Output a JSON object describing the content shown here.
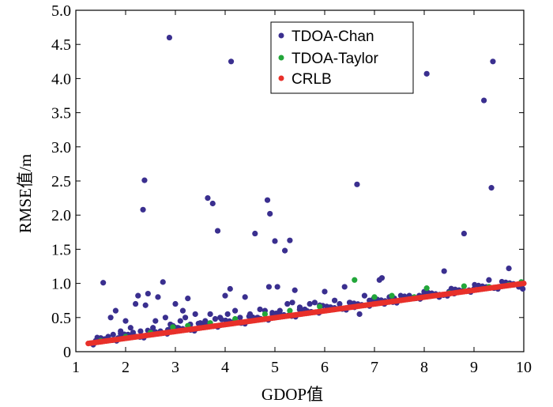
{
  "chart_data": {
    "type": "scatter",
    "title": "",
    "xlabel": "GDOP值",
    "ylabel": "RMSE值/m",
    "xlim": [
      1,
      10
    ],
    "ylim": [
      0,
      5
    ],
    "xticks": [
      "1",
      "2",
      "3",
      "4",
      "5",
      "6",
      "7",
      "8",
      "9",
      "10"
    ],
    "yticks": [
      "0",
      "0.5",
      "1.0",
      "1.5",
      "2.0",
      "2.5",
      "3.0",
      "3.5",
      "4.0",
      "4.5",
      "5.0"
    ],
    "legend": {
      "position": "top-right"
    },
    "series": [
      {
        "name": "TDOA-Chan",
        "color": "#3a2f8f",
        "points": [
          [
            1.4,
            0.16
          ],
          [
            1.5,
            0.2
          ],
          [
            1.55,
            1.01
          ],
          [
            1.6,
            0.18
          ],
          [
            1.65,
            0.22
          ],
          [
            1.7,
            0.5
          ],
          [
            1.75,
            0.25
          ],
          [
            1.8,
            0.6
          ],
          [
            1.85,
            0.2
          ],
          [
            1.9,
            0.3
          ],
          [
            1.95,
            0.22
          ],
          [
            2.0,
            0.45
          ],
          [
            2.05,
            0.25
          ],
          [
            2.1,
            0.35
          ],
          [
            2.15,
            0.28
          ],
          [
            2.2,
            0.7
          ],
          [
            2.25,
            0.82
          ],
          [
            2.3,
            0.3
          ],
          [
            2.35,
            2.08
          ],
          [
            2.38,
            2.51
          ],
          [
            2.4,
            0.68
          ],
          [
            2.45,
            0.85
          ],
          [
            2.5,
            0.28
          ],
          [
            2.55,
            0.35
          ],
          [
            2.6,
            0.45
          ],
          [
            2.65,
            0.8
          ],
          [
            2.7,
            0.3
          ],
          [
            2.75,
            1.02
          ],
          [
            2.8,
            0.5
          ],
          [
            2.85,
            0.32
          ],
          [
            2.88,
            4.6
          ],
          [
            2.9,
            0.4
          ],
          [
            2.95,
            0.38
          ],
          [
            3.0,
            0.7
          ],
          [
            3.05,
            0.35
          ],
          [
            3.1,
            0.45
          ],
          [
            3.15,
            0.6
          ],
          [
            3.2,
            0.5
          ],
          [
            3.25,
            0.78
          ],
          [
            3.3,
            0.4
          ],
          [
            3.4,
            0.55
          ],
          [
            3.5,
            0.42
          ],
          [
            3.6,
            0.45
          ],
          [
            3.65,
            2.25
          ],
          [
            3.7,
            0.55
          ],
          [
            3.75,
            2.17
          ],
          [
            3.8,
            0.48
          ],
          [
            3.85,
            1.77
          ],
          [
            3.9,
            0.5
          ],
          [
            4.0,
            0.82
          ],
          [
            4.05,
            0.55
          ],
          [
            4.1,
            0.92
          ],
          [
            4.12,
            4.25
          ],
          [
            4.2,
            0.6
          ],
          [
            4.3,
            0.5
          ],
          [
            4.4,
            0.8
          ],
          [
            4.5,
            0.55
          ],
          [
            4.6,
            1.73
          ],
          [
            4.65,
            0.5
          ],
          [
            4.7,
            0.62
          ],
          [
            4.8,
            0.6
          ],
          [
            4.85,
            2.22
          ],
          [
            4.88,
            0.95
          ],
          [
            4.9,
            2.02
          ],
          [
            4.95,
            0.55
          ],
          [
            5.0,
            1.62
          ],
          [
            5.05,
            0.95
          ],
          [
            5.1,
            0.6
          ],
          [
            5.2,
            1.48
          ],
          [
            5.25,
            0.7
          ],
          [
            5.3,
            1.63
          ],
          [
            5.35,
            0.72
          ],
          [
            5.4,
            0.9
          ],
          [
            5.5,
            0.65
          ],
          [
            5.6,
            0.62
          ],
          [
            5.7,
            0.7
          ],
          [
            5.8,
            0.72
          ],
          [
            5.9,
            0.68
          ],
          [
            6.0,
            0.88
          ],
          [
            6.1,
            0.65
          ],
          [
            6.2,
            0.75
          ],
          [
            6.3,
            0.7
          ],
          [
            6.4,
            0.95
          ],
          [
            6.5,
            0.72
          ],
          [
            6.6,
            0.65
          ],
          [
            6.65,
            2.45
          ],
          [
            6.7,
            0.55
          ],
          [
            6.8,
            0.82
          ],
          [
            6.9,
            0.75
          ],
          [
            7.0,
            0.72
          ],
          [
            7.1,
            1.05
          ],
          [
            7.15,
            1.08
          ],
          [
            7.2,
            0.7
          ],
          [
            7.3,
            0.8
          ],
          [
            7.4,
            0.78
          ],
          [
            7.5,
            0.75
          ],
          [
            7.6,
            0.8
          ],
          [
            7.7,
            0.82
          ],
          [
            7.8,
            0.78
          ],
          [
            7.9,
            0.82
          ],
          [
            8.0,
            0.85
          ],
          [
            8.05,
            4.07
          ],
          [
            8.1,
            0.82
          ],
          [
            8.3,
            0.8
          ],
          [
            8.4,
            1.18
          ],
          [
            8.5,
            0.88
          ],
          [
            8.6,
            0.85
          ],
          [
            8.8,
            1.73
          ],
          [
            8.9,
            0.9
          ],
          [
            9.0,
            0.92
          ],
          [
            9.2,
            3.68
          ],
          [
            9.3,
            1.05
          ],
          [
            9.35,
            2.4
          ],
          [
            9.38,
            4.25
          ],
          [
            9.5,
            0.95
          ],
          [
            9.6,
            0.98
          ],
          [
            9.7,
            1.22
          ],
          [
            9.8,
            0.98
          ],
          [
            9.9,
            0.95
          ],
          [
            9.98,
            0.92
          ]
        ]
      },
      {
        "name": "TDOA-Taylor",
        "color": "#22a63a",
        "points": [
          [
            1.5,
            0.16
          ],
          [
            2.0,
            0.22
          ],
          [
            2.5,
            0.28
          ],
          [
            2.95,
            0.36
          ],
          [
            3.25,
            0.38
          ],
          [
            3.7,
            0.42
          ],
          [
            4.2,
            0.48
          ],
          [
            4.8,
            0.55
          ],
          [
            5.3,
            0.6
          ],
          [
            5.9,
            0.66
          ],
          [
            6.6,
            1.05
          ],
          [
            7.0,
            0.8
          ],
          [
            7.35,
            0.82
          ],
          [
            7.8,
            0.8
          ],
          [
            8.05,
            0.93
          ],
          [
            8.5,
            0.86
          ],
          [
            8.8,
            0.96
          ],
          [
            9.3,
            0.95
          ],
          [
            9.7,
            0.98
          ],
          [
            9.95,
            1.02
          ]
        ]
      },
      {
        "name": "CRLB",
        "color": "#e8302a",
        "line_from": [
          1.25,
          0.12
        ],
        "line_to": [
          10.0,
          1.0
        ]
      }
    ]
  }
}
